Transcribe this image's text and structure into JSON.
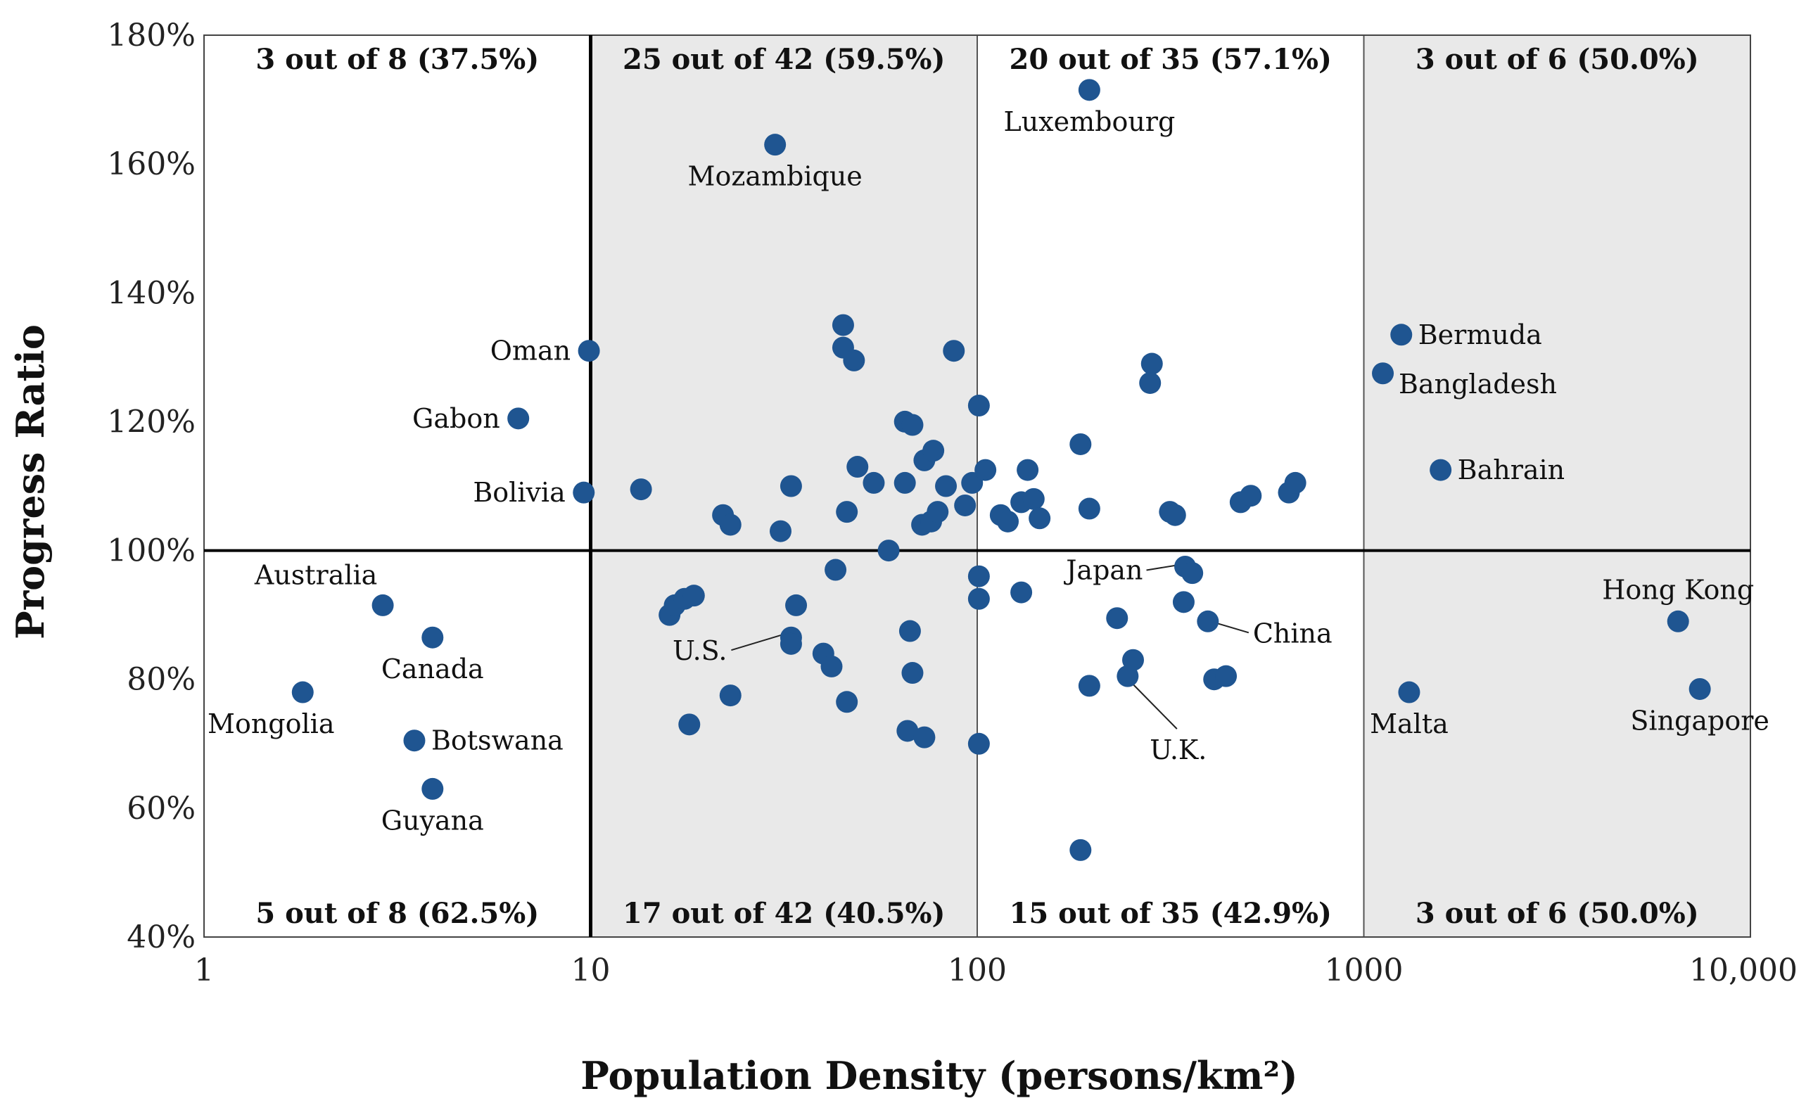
{
  "chart_data": {
    "type": "scatter",
    "title": "",
    "xlabel": "Population Density (persons/km²)",
    "ylabel": "Progress Ratio",
    "xscale": "log",
    "xlim": [
      1,
      10000
    ],
    "ylim": [
      40,
      180
    ],
    "xticks": [
      {
        "value": 1,
        "label": "1"
      },
      {
        "value": 10,
        "label": "10"
      },
      {
        "value": 100,
        "label": "100"
      },
      {
        "value": 1000,
        "label": "1000"
      },
      {
        "value": 10000,
        "label": "10,000"
      }
    ],
    "yticks": [
      {
        "value": 40,
        "label": "40%"
      },
      {
        "value": 60,
        "label": "60%"
      },
      {
        "value": 80,
        "label": "80%"
      },
      {
        "value": 100,
        "label": "100%"
      },
      {
        "value": 120,
        "label": "120%"
      },
      {
        "value": 140,
        "label": "140%"
      },
      {
        "value": 160,
        "label": "160%"
      },
      {
        "value": 180,
        "label": "180%"
      }
    ],
    "reference_lines": {
      "x": 10,
      "y": 100
    },
    "shaded_bands": [
      [
        10,
        100
      ],
      [
        1000,
        10000
      ]
    ],
    "band_dividers": [
      100,
      1000
    ],
    "quadrant_labels": [
      {
        "text": "3 out of 8 (37.5%)",
        "band": [
          1,
          10
        ],
        "pos": "top"
      },
      {
        "text": "25 out of 42 (59.5%)",
        "band": [
          10,
          100
        ],
        "pos": "top"
      },
      {
        "text": "20 out of 35 (57.1%)",
        "band": [
          100,
          1000
        ],
        "pos": "top"
      },
      {
        "text": "3 out of 6 (50.0%)",
        "band": [
          1000,
          10000
        ],
        "pos": "top"
      },
      {
        "text": "5 out of 8 (62.5%)",
        "band": [
          1,
          10
        ],
        "pos": "bottom"
      },
      {
        "text": "17 out of 42 (40.5%)",
        "band": [
          10,
          100
        ],
        "pos": "bottom"
      },
      {
        "text": "15 out of 35 (42.9%)",
        "band": [
          100,
          1000
        ],
        "pos": "bottom"
      },
      {
        "text": "3 out of 6 (50.0%)",
        "band": [
          1000,
          10000
        ],
        "pos": "bottom"
      }
    ],
    "series": [
      {
        "name": "countries",
        "color": "#1f5591",
        "points": [
          {
            "x": 195,
            "y": 171.5,
            "label": "Luxembourg",
            "anchor": "below"
          },
          {
            "x": 30,
            "y": 163,
            "label": "Mozambique",
            "anchor": "below"
          },
          {
            "x": 9.9,
            "y": 131,
            "label": "Oman",
            "anchor": "left"
          },
          {
            "x": 6.5,
            "y": 120.5,
            "label": "Gabon",
            "anchor": "left"
          },
          {
            "x": 9.6,
            "y": 109,
            "label": "Bolivia",
            "anchor": "left"
          },
          {
            "x": 2.9,
            "y": 91.5,
            "label": "Australia",
            "anchor": "above-left"
          },
          {
            "x": 3.9,
            "y": 86.5,
            "label": "Canada",
            "anchor": "below"
          },
          {
            "x": 1.8,
            "y": 78,
            "label": "Mongolia",
            "anchor": "below-left"
          },
          {
            "x": 3.5,
            "y": 70.5,
            "label": "Botswana",
            "anchor": "right"
          },
          {
            "x": 3.9,
            "y": 63,
            "label": "Guyana",
            "anchor": "below"
          },
          {
            "x": 1250,
            "y": 133.5,
            "label": "Bermuda",
            "anchor": "right"
          },
          {
            "x": 1120,
            "y": 127.5,
            "label": "Bangladesh",
            "anchor": "below-right"
          },
          {
            "x": 1580,
            "y": 112.5,
            "label": "Bahrain",
            "anchor": "right"
          },
          {
            "x": 6500,
            "y": 89,
            "label": "Hong Kong",
            "anchor": "above"
          },
          {
            "x": 7400,
            "y": 78.5,
            "label": "Singapore",
            "anchor": "below"
          },
          {
            "x": 1310,
            "y": 78,
            "label": "Malta",
            "anchor": "below"
          },
          {
            "x": 33,
            "y": 86.5,
            "label": "U.S.",
            "anchor": "leader-left"
          },
          {
            "x": 345,
            "y": 97.5,
            "label": "Japan",
            "anchor": "leader-left"
          },
          {
            "x": 395,
            "y": 89,
            "label": "China",
            "anchor": "leader-right"
          },
          {
            "x": 245,
            "y": 80.5,
            "label": "U.K.",
            "anchor": "leader-below"
          },
          {
            "x": 45,
            "y": 135
          },
          {
            "x": 45,
            "y": 131.5
          },
          {
            "x": 48,
            "y": 129.5
          },
          {
            "x": 87,
            "y": 131
          },
          {
            "x": 65,
            "y": 120
          },
          {
            "x": 68,
            "y": 119.5
          },
          {
            "x": 101,
            "y": 122.5
          },
          {
            "x": 73,
            "y": 114
          },
          {
            "x": 77,
            "y": 115.5
          },
          {
            "x": 49,
            "y": 113
          },
          {
            "x": 54,
            "y": 110.5
          },
          {
            "x": 65,
            "y": 110.5
          },
          {
            "x": 83,
            "y": 110
          },
          {
            "x": 97,
            "y": 110.5
          },
          {
            "x": 105,
            "y": 112.5
          },
          {
            "x": 135,
            "y": 112.5
          },
          {
            "x": 185,
            "y": 116.5
          },
          {
            "x": 283,
            "y": 129
          },
          {
            "x": 280,
            "y": 126
          },
          {
            "x": 13.5,
            "y": 109.5
          },
          {
            "x": 33,
            "y": 110
          },
          {
            "x": 22,
            "y": 105.5
          },
          {
            "x": 23,
            "y": 104
          },
          {
            "x": 31,
            "y": 103
          },
          {
            "x": 46,
            "y": 106
          },
          {
            "x": 59,
            "y": 100
          },
          {
            "x": 72,
            "y": 104
          },
          {
            "x": 76,
            "y": 104.5
          },
          {
            "x": 79,
            "y": 106
          },
          {
            "x": 93,
            "y": 107
          },
          {
            "x": 115,
            "y": 105.5
          },
          {
            "x": 120,
            "y": 104.5
          },
          {
            "x": 130,
            "y": 107.5
          },
          {
            "x": 140,
            "y": 108
          },
          {
            "x": 145,
            "y": 105
          },
          {
            "x": 195,
            "y": 106.5
          },
          {
            "x": 315,
            "y": 106
          },
          {
            "x": 325,
            "y": 105.5
          },
          {
            "x": 480,
            "y": 107.5
          },
          {
            "x": 510,
            "y": 108.5
          },
          {
            "x": 640,
            "y": 109
          },
          {
            "x": 665,
            "y": 110.5
          },
          {
            "x": 43,
            "y": 97
          },
          {
            "x": 101,
            "y": 96
          },
          {
            "x": 101,
            "y": 92.5
          },
          {
            "x": 130,
            "y": 93.5
          },
          {
            "x": 16,
            "y": 90
          },
          {
            "x": 16.5,
            "y": 91.5
          },
          {
            "x": 17.5,
            "y": 92.5
          },
          {
            "x": 18.5,
            "y": 93
          },
          {
            "x": 34,
            "y": 91.5
          },
          {
            "x": 33,
            "y": 85.5
          },
          {
            "x": 67,
            "y": 87.5
          },
          {
            "x": 40,
            "y": 84
          },
          {
            "x": 42,
            "y": 82
          },
          {
            "x": 68,
            "y": 81
          },
          {
            "x": 23,
            "y": 77.5
          },
          {
            "x": 46,
            "y": 76.5
          },
          {
            "x": 18,
            "y": 73
          },
          {
            "x": 66,
            "y": 72
          },
          {
            "x": 73,
            "y": 71
          },
          {
            "x": 101,
            "y": 70
          },
          {
            "x": 360,
            "y": 96.5
          },
          {
            "x": 342,
            "y": 92
          },
          {
            "x": 230,
            "y": 89.5
          },
          {
            "x": 253,
            "y": 83
          },
          {
            "x": 195,
            "y": 79
          },
          {
            "x": 410,
            "y": 80
          },
          {
            "x": 440,
            "y": 80.5
          },
          {
            "x": 185,
            "y": 53.5
          }
        ]
      }
    ]
  }
}
